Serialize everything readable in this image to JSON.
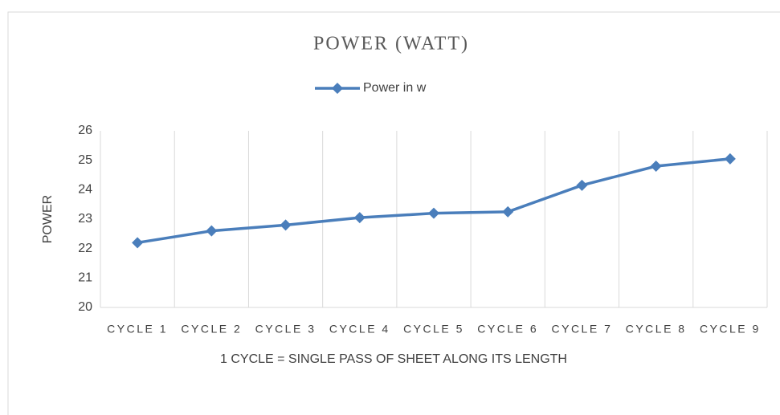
{
  "chart_data": {
    "type": "line",
    "title": "POWER (WATT)",
    "x_label": "1 CYCLE = SINGLE PASS OF SHEET ALONG ITS LENGTH",
    "y_label": "POWER",
    "categories": [
      "CYCLE 1",
      "CYCLE 2",
      "CYCLE 3",
      "CYCLE 4",
      "CYCLE 5",
      "CYCLE 6",
      "CYCLE 7",
      "CYCLE 8",
      "CYCLE 9"
    ],
    "series": [
      {
        "name": "Power in w",
        "color": "#4a7ebb",
        "values": [
          22.2,
          22.6,
          22.8,
          23.05,
          23.2,
          23.25,
          24.15,
          24.8,
          25.05
        ]
      }
    ],
    "ylim": [
      20,
      26
    ],
    "yticks": [
      20,
      21,
      22,
      23,
      24,
      25,
      26
    ],
    "xgrid": true,
    "legend": "top"
  }
}
